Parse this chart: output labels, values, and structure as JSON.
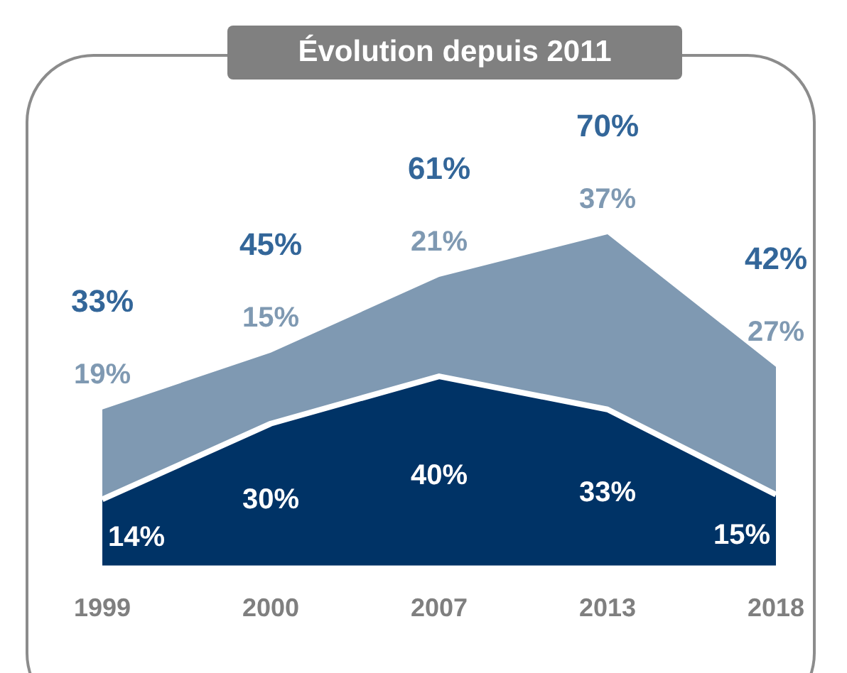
{
  "chart_data": {
    "type": "area",
    "title": "Évolution depuis 2011",
    "categories": [
      "1999",
      "2000",
      "2007",
      "2013",
      "2018"
    ],
    "stacked": true,
    "data_labels": true,
    "series": [
      {
        "color": "#003366",
        "values": [
          14,
          30,
          40,
          33,
          15
        ],
        "value_labels": [
          "14%",
          "30%",
          "40%",
          "33%",
          "15%"
        ]
      },
      {
        "color": "#7f99b2",
        "values": [
          19,
          15,
          21,
          37,
          27
        ],
        "value_labels": [
          "19%",
          "15%",
          "21%",
          "37%",
          "27%"
        ]
      }
    ],
    "totals": [
      "33%",
      "45%",
      "61%",
      "70%",
      "42%"
    ]
  }
}
